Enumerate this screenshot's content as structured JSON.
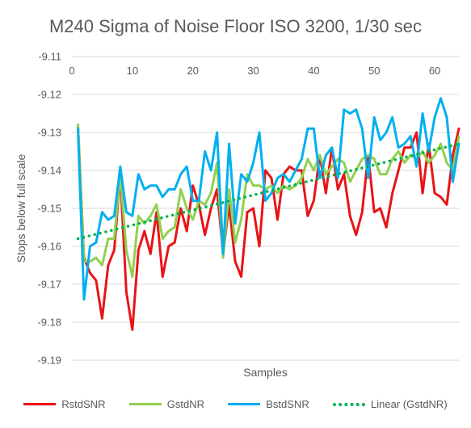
{
  "chart_data": {
    "type": "line",
    "title": "M240 Sigma of Noise Floor ISO 3200, 1/30 sec",
    "xlabel": "Samples",
    "ylabel": "Stops below full scale",
    "xlim": [
      0,
      64
    ],
    "ylim": [
      -9.19,
      -9.11
    ],
    "x_ticks": [
      0,
      10,
      20,
      30,
      40,
      50,
      60
    ],
    "y_ticks": [
      -9.11,
      -9.12,
      -9.13,
      -9.14,
      -9.15,
      -9.16,
      -9.17,
      -9.18,
      -9.19
    ],
    "y_tick_labels": [
      "-9.11",
      "-9.12",
      "-9.13",
      "-9.14",
      "-9.15",
      "-9.16",
      "-9.17",
      "-9.18",
      "-9.19"
    ],
    "grid": "horizontal",
    "legend_position": "bottom",
    "x": [
      1,
      2,
      3,
      4,
      5,
      6,
      7,
      8,
      9,
      10,
      11,
      12,
      13,
      14,
      15,
      16,
      17,
      18,
      19,
      20,
      21,
      22,
      23,
      24,
      25,
      26,
      27,
      28,
      29,
      30,
      31,
      32,
      33,
      34,
      35,
      36,
      37,
      38,
      39,
      40,
      41,
      42,
      43,
      44,
      45,
      46,
      47,
      48,
      49,
      50,
      51,
      52,
      53,
      54,
      55,
      56,
      57,
      58,
      59,
      60,
      61,
      62,
      63,
      64
    ],
    "series": [
      {
        "name": "RstdSNR",
        "color": "#e81416",
        "values": [
          -9.128,
          -9.163,
          -9.167,
          -9.169,
          -9.179,
          -9.165,
          -9.161,
          -9.141,
          -9.172,
          -9.182,
          -9.161,
          -9.156,
          -9.162,
          -9.151,
          -9.168,
          -9.16,
          -9.159,
          -9.15,
          -9.156,
          -9.144,
          -9.149,
          -9.157,
          -9.15,
          -9.145,
          -9.162,
          -9.149,
          -9.164,
          -9.168,
          -9.151,
          -9.15,
          -9.16,
          -9.14,
          -9.142,
          -9.153,
          -9.141,
          -9.139,
          -9.14,
          -9.14,
          -9.152,
          -9.148,
          -9.136,
          -9.146,
          -9.134,
          -9.145,
          -9.141,
          -9.152,
          -9.157,
          -9.151,
          -9.136,
          -9.151,
          -9.15,
          -9.155,
          -9.146,
          -9.14,
          -9.134,
          -9.134,
          -9.13,
          -9.146,
          -9.133,
          -9.146,
          -9.147,
          -9.149,
          -9.136,
          -9.129
        ]
      },
      {
        "name": "GstdNR",
        "color": "#92d050",
        "values": [
          -9.128,
          -9.164,
          -9.164,
          -9.163,
          -9.165,
          -9.158,
          -9.158,
          -9.141,
          -9.161,
          -9.168,
          -9.152,
          -9.154,
          -9.152,
          -9.149,
          -9.158,
          -9.156,
          -9.155,
          -9.145,
          -9.15,
          -9.153,
          -9.148,
          -9.149,
          -9.146,
          -9.138,
          -9.163,
          -9.145,
          -9.159,
          -9.153,
          -9.141,
          -9.144,
          -9.144,
          -9.145,
          -9.144,
          -9.146,
          -9.144,
          -9.145,
          -9.144,
          -9.142,
          -9.137,
          -9.14,
          -9.136,
          -9.141,
          -9.139,
          -9.137,
          -9.138,
          -9.143,
          -9.14,
          -9.137,
          -9.136,
          -9.137,
          -9.141,
          -9.141,
          -9.137,
          -9.135,
          -9.138,
          -9.136,
          -9.137,
          -9.135,
          -9.138,
          -9.136,
          -9.133,
          -9.138,
          -9.14,
          -9.131
        ]
      },
      {
        "name": "BstdSNR",
        "color": "#00b0f0",
        "values": [
          -9.129,
          -9.174,
          -9.16,
          -9.159,
          -9.151,
          -9.153,
          -9.152,
          -9.139,
          -9.151,
          -9.152,
          -9.141,
          -9.145,
          -9.144,
          -9.144,
          -9.147,
          -9.145,
          -9.145,
          -9.141,
          -9.139,
          -9.148,
          -9.148,
          -9.135,
          -9.14,
          -9.13,
          -9.162,
          -9.133,
          -9.154,
          -9.141,
          -9.143,
          -9.138,
          -9.13,
          -9.148,
          -9.146,
          -9.142,
          -9.141,
          -9.143,
          -9.14,
          -9.137,
          -9.129,
          -9.129,
          -9.142,
          -9.136,
          -9.134,
          -9.142,
          -9.124,
          -9.125,
          -9.124,
          -9.129,
          -9.142,
          -9.126,
          -9.132,
          -9.13,
          -9.126,
          -9.134,
          -9.133,
          -9.131,
          -9.139,
          -9.125,
          -9.135,
          -9.126,
          -9.121,
          -9.126,
          -9.143,
          -9.133
        ]
      },
      {
        "name": "Linear (GstdNR)",
        "color": "#00b050",
        "style": "dotted",
        "values_endpoints": [
          -9.158,
          -9.133
        ]
      }
    ]
  }
}
